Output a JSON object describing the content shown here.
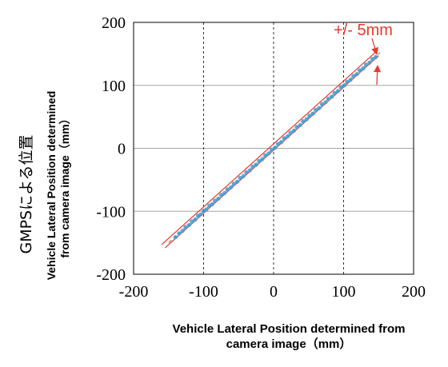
{
  "chart_data": {
    "type": "scatter",
    "xlim": [
      -200,
      200
    ],
    "ylim": [
      -200,
      200
    ],
    "x_ticks": [
      "-200",
      "-100",
      "0",
      "100",
      "200"
    ],
    "y_ticks": [
      "200",
      "100",
      "0",
      "-100",
      "-200"
    ],
    "xlabel_line1": "Vehicle Lateral Position determined from",
    "xlabel_line2": "camera image（mm）",
    "ylabel_jp": "GMPSによる位置",
    "ylabel_line1": "Vehicle Lateral Position determined",
    "ylabel_line2": "from camera image（mm）",
    "annotation": "+/- 5mm",
    "grid": {
      "horizontal": true,
      "vertical_dashed_at": [
        -100,
        0,
        100
      ]
    },
    "tolerance_lines": [
      {
        "from": [
          -160,
          -153
        ],
        "to": [
          145,
          152
        ]
      },
      {
        "from": [
          -155,
          -158
        ],
        "to": [
          150,
          147
        ]
      }
    ],
    "fit_line": {
      "from": [
        -150,
        -150
      ],
      "to": [
        152,
        152
      ]
    },
    "series": [
      {
        "color": "#3b9fd8",
        "points": [
          [
            -140,
            -141
          ],
          [
            -135,
            -135
          ],
          [
            -130,
            -131
          ],
          [
            -126,
            -125
          ],
          [
            -121,
            -122
          ],
          [
            -117,
            -116
          ],
          [
            -112,
            -113
          ],
          [
            -108,
            -107
          ],
          [
            -104,
            -105
          ],
          [
            -100,
            -99
          ],
          [
            -96,
            -97
          ],
          [
            -92,
            -91
          ],
          [
            -88,
            -89
          ],
          [
            -84,
            -83
          ],
          [
            -79,
            -80
          ],
          [
            -75,
            -74
          ],
          [
            -70,
            -71
          ],
          [
            -66,
            -65
          ],
          [
            -61,
            -62
          ],
          [
            -57,
            -56
          ],
          [
            -52,
            -53
          ],
          [
            -48,
            -47
          ],
          [
            -43,
            -44
          ],
          [
            -39,
            -38
          ],
          [
            -34,
            -35
          ],
          [
            -30,
            -29
          ],
          [
            -25,
            -26
          ],
          [
            -21,
            -20
          ],
          [
            -16,
            -17
          ],
          [
            -12,
            -11
          ],
          [
            -7,
            -8
          ],
          [
            -3,
            -2
          ],
          [
            2,
            1
          ],
          [
            6,
            7
          ],
          [
            11,
            10
          ],
          [
            15,
            16
          ],
          [
            20,
            19
          ],
          [
            24,
            25
          ],
          [
            29,
            28
          ],
          [
            33,
            34
          ],
          [
            38,
            37
          ],
          [
            42,
            43
          ],
          [
            47,
            46
          ],
          [
            51,
            52
          ],
          [
            56,
            55
          ],
          [
            60,
            61
          ],
          [
            65,
            64
          ],
          [
            69,
            70
          ],
          [
            74,
            73
          ],
          [
            78,
            79
          ],
          [
            83,
            82
          ],
          [
            87,
            88
          ],
          [
            92,
            91
          ],
          [
            96,
            97
          ],
          [
            101,
            100
          ],
          [
            105,
            106
          ],
          [
            110,
            109
          ],
          [
            114,
            115
          ],
          [
            119,
            118
          ],
          [
            123,
            124
          ],
          [
            128,
            127
          ],
          [
            132,
            133
          ],
          [
            137,
            136
          ],
          [
            141,
            142
          ],
          [
            146,
            145
          ]
        ]
      }
    ]
  }
}
